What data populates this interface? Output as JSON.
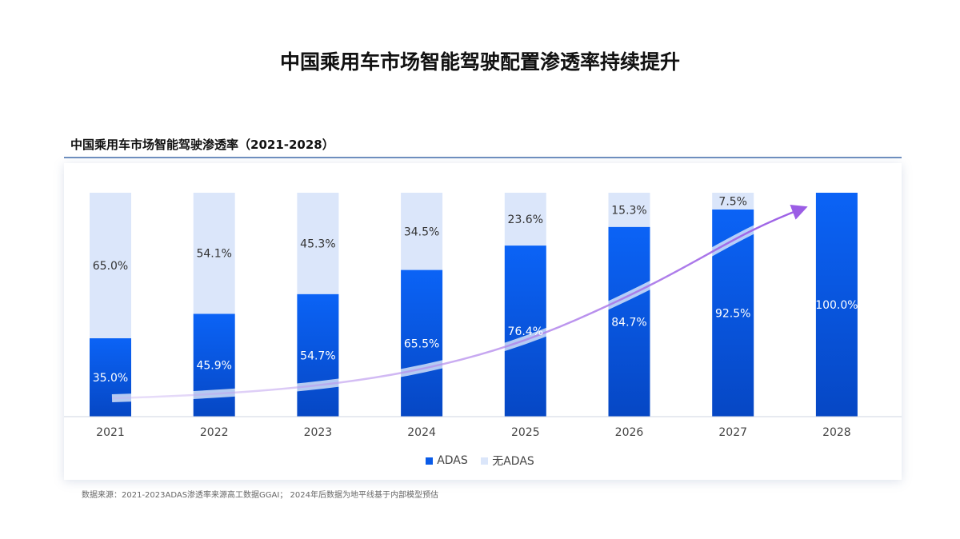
{
  "title": "中国乘用车市场智能驾驶配置渗透率持续提升",
  "chart_data": {
    "type": "bar",
    "stacked": true,
    "title": "中国乘用车市场智能驾驶渗透率（2021-2028）",
    "categories": [
      "2021",
      "2022",
      "2023",
      "2024",
      "2025",
      "2026",
      "2027",
      "2028"
    ],
    "series": [
      {
        "name": "ADAS",
        "values": [
          35.0,
          45.9,
          54.7,
          65.5,
          76.4,
          84.7,
          92.5,
          100.0
        ],
        "color": "#0a5be8"
      },
      {
        "name": "无ADAS",
        "values": [
          65.0,
          54.1,
          45.3,
          34.5,
          23.6,
          15.3,
          7.5,
          0
        ],
        "color": "#dbe6fa"
      }
    ],
    "ylim": [
      0,
      100
    ],
    "legend": "bottom",
    "grid": false,
    "trend_arrow_color": "#9b5de5"
  },
  "source": "数据来源：2021-2023ADAS渗透率来源高工数据GGAI； 2024年后数据为地平线基于内部模型预估"
}
